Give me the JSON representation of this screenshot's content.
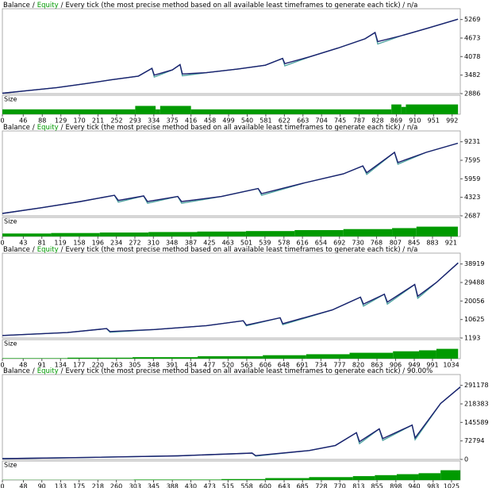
{
  "chart_data": [
    {
      "type": "line",
      "balance_name": "Balance",
      "equity_name": "Equity",
      "separator": "/",
      "subtitle": "Every tick (the most precise method based on all available least timeframes to generate each tick) / n/a",
      "size_label": "Size",
      "x": [
        0,
        60,
        120,
        180,
        240,
        300,
        330,
        335,
        375,
        392,
        397,
        450,
        520,
        580,
        618,
        623,
        680,
        740,
        800,
        822,
        828,
        880,
        940,
        1005
      ],
      "series": [
        {
          "name": "Equity",
          "color": "#4fa3a0",
          "values": [
            2900,
            2990,
            3080,
            3200,
            3330,
            3450,
            3700,
            3420,
            3650,
            3820,
            3460,
            3560,
            3680,
            3800,
            4020,
            3780,
            4080,
            4350,
            4650,
            4850,
            4480,
            4750,
            5000,
            5280
          ]
        },
        {
          "name": "Balance",
          "color": "#1a1f6e",
          "values": [
            2900,
            2990,
            3080,
            3200,
            3330,
            3450,
            3700,
            3480,
            3650,
            3820,
            3520,
            3560,
            3680,
            3800,
            4020,
            3850,
            4080,
            4350,
            4650,
            4850,
            4560,
            4750,
            5000,
            5280
          ]
        }
      ],
      "size_edges": [
        0,
        293,
        338,
        348,
        416,
        858,
        880,
        890,
        1005
      ],
      "size_values": [
        0.5,
        0.85,
        0.5,
        0.85,
        0.5,
        1.0,
        0.75,
        1.0
      ],
      "size_ylim": [
        0,
        1.05
      ],
      "size_color": "#009a00",
      "xlim": [
        0,
        1010
      ],
      "ylim": [
        2886,
        5540
      ],
      "yticks": [
        2886,
        3482,
        4078,
        4673,
        5269
      ],
      "xticks": [
        0,
        46,
        88,
        129,
        170,
        211,
        252,
        293,
        334,
        375,
        416,
        458,
        499,
        540,
        581,
        622,
        663,
        704,
        745,
        787,
        828,
        869,
        910,
        951,
        992
      ]
    },
    {
      "type": "line",
      "balance_name": "Balance",
      "equity_name": "Equity",
      "separator": "/",
      "subtitle": "Every tick (the most precise method based on all available least timeframes to generate each tick) / n/a",
      "size_label": "Size",
      "x": [
        0,
        80,
        160,
        230,
        238,
        290,
        298,
        360,
        368,
        450,
        525,
        532,
        620,
        700,
        740,
        748,
        805,
        812,
        870,
        935
      ],
      "series": [
        {
          "name": "Equity",
          "color": "#4fa3a0",
          "values": [
            2900,
            3400,
            3950,
            4500,
            3900,
            4450,
            3800,
            4400,
            3800,
            4400,
            5100,
            4500,
            5600,
            6400,
            7100,
            6350,
            8300,
            7250,
            8300,
            9100
          ]
        },
        {
          "name": "Balance",
          "color": "#1a1f6e",
          "values": [
            2900,
            3400,
            3950,
            4500,
            4050,
            4450,
            3950,
            4400,
            3950,
            4400,
            5100,
            4650,
            5600,
            6400,
            7100,
            6500,
            8300,
            7400,
            8300,
            9100
          ]
        }
      ],
      "size_edges": [
        0,
        100,
        200,
        300,
        400,
        500,
        600,
        700,
        800,
        850,
        935
      ],
      "size_values": [
        0.3,
        0.35,
        0.4,
        0.45,
        0.5,
        0.55,
        0.65,
        0.75,
        0.85,
        1.0
      ],
      "size_ylim": [
        0,
        1.05
      ],
      "size_color": "#009a00",
      "xlim": [
        0,
        940
      ],
      "ylim": [
        2687,
        9980
      ],
      "yticks": [
        2687,
        4323,
        5959,
        7595,
        9231
      ],
      "xticks": [
        0,
        43,
        81,
        119,
        158,
        196,
        234,
        272,
        310,
        348,
        387,
        425,
        463,
        501,
        539,
        578,
        616,
        654,
        692,
        730,
        768,
        807,
        845,
        883,
        921
      ]
    },
    {
      "type": "line",
      "balance_name": "Balance",
      "equity_name": "Equity",
      "separator": "/",
      "subtitle": "Every tick (the most precise method based on all available least timeframes to generate each tick) / n/a",
      "size_label": "Size",
      "x": [
        0,
        150,
        240,
        248,
        350,
        470,
        555,
        562,
        640,
        646,
        760,
        825,
        832,
        880,
        887,
        950,
        957,
        1000,
        1050
      ],
      "series": [
        {
          "name": "Equity",
          "color": "#4fa3a0",
          "values": [
            2500,
            4000,
            6000,
            4200,
            5500,
            7500,
            10000,
            7400,
            11500,
            8000,
            15500,
            22000,
            17500,
            23500,
            18500,
            28500,
            21500,
            29500,
            39500
          ]
        },
        {
          "name": "Balance",
          "color": "#1a1f6e",
          "values": [
            2500,
            4000,
            6000,
            4500,
            5500,
            7500,
            10000,
            7800,
            11500,
            8500,
            15500,
            22000,
            18500,
            23500,
            19500,
            28500,
            22500,
            29500,
            39500
          ]
        }
      ],
      "size_edges": [
        0,
        150,
        300,
        450,
        600,
        700,
        800,
        900,
        960,
        1000,
        1050
      ],
      "size_values": [
        0.05,
        0.1,
        0.15,
        0.25,
        0.35,
        0.45,
        0.6,
        0.75,
        0.85,
        1.0
      ],
      "size_ylim": [
        0,
        1.05
      ],
      "size_color": "#009a00",
      "xlim": [
        0,
        1055
      ],
      "ylim": [
        1193,
        43240
      ],
      "yticks": [
        1193,
        10625,
        20056,
        29488,
        38919
      ],
      "xticks": [
        0,
        48,
        91,
        134,
        177,
        220,
        263,
        305,
        348,
        391,
        434,
        477,
        520,
        563,
        606,
        648,
        691,
        734,
        777,
        820,
        863,
        906,
        949,
        991,
        1034
      ]
    },
    {
      "type": "line",
      "balance_name": "Balance",
      "equity_name": "Equity",
      "separator": "/",
      "subtitle": "Every tick (the most precise method based on all available least timeframes to generate each tick) / 90.00%",
      "size_label": "Size",
      "x": [
        0,
        200,
        400,
        570,
        578,
        700,
        760,
        808,
        815,
        860,
        868,
        935,
        942,
        1000,
        1045
      ],
      "series": [
        {
          "name": "Equity",
          "color": "#4fa3a0",
          "values": [
            3000,
            8000,
            14000,
            25000,
            13000,
            35000,
            55000,
            105000,
            62000,
            120000,
            75000,
            135000,
            78000,
            220000,
            285000
          ]
        },
        {
          "name": "Balance",
          "color": "#1a1f6e",
          "values": [
            3000,
            8000,
            14000,
            25000,
            15000,
            35000,
            55000,
            105000,
            70000,
            120000,
            82000,
            135000,
            85000,
            220000,
            285000
          ]
        }
      ],
      "size_edges": [
        0,
        300,
        500,
        600,
        700,
        800,
        850,
        900,
        950,
        1000,
        1045
      ],
      "size_values": [
        0.02,
        0.05,
        0.1,
        0.2,
        0.3,
        0.4,
        0.5,
        0.6,
        0.7,
        1.0
      ],
      "size_ylim": [
        0,
        1.05
      ],
      "size_color": "#009a00",
      "xlim": [
        0,
        1045
      ],
      "ylim": [
        0,
        324500
      ],
      "yticks": [
        0,
        72794,
        145589,
        218383,
        291178
      ],
      "xticks": [
        0,
        48,
        90,
        133,
        175,
        218,
        260,
        303,
        345,
        388,
        430,
        473,
        515,
        558,
        600,
        643,
        685,
        728,
        770,
        813,
        855,
        898,
        940,
        983,
        1025
      ]
    }
  ]
}
